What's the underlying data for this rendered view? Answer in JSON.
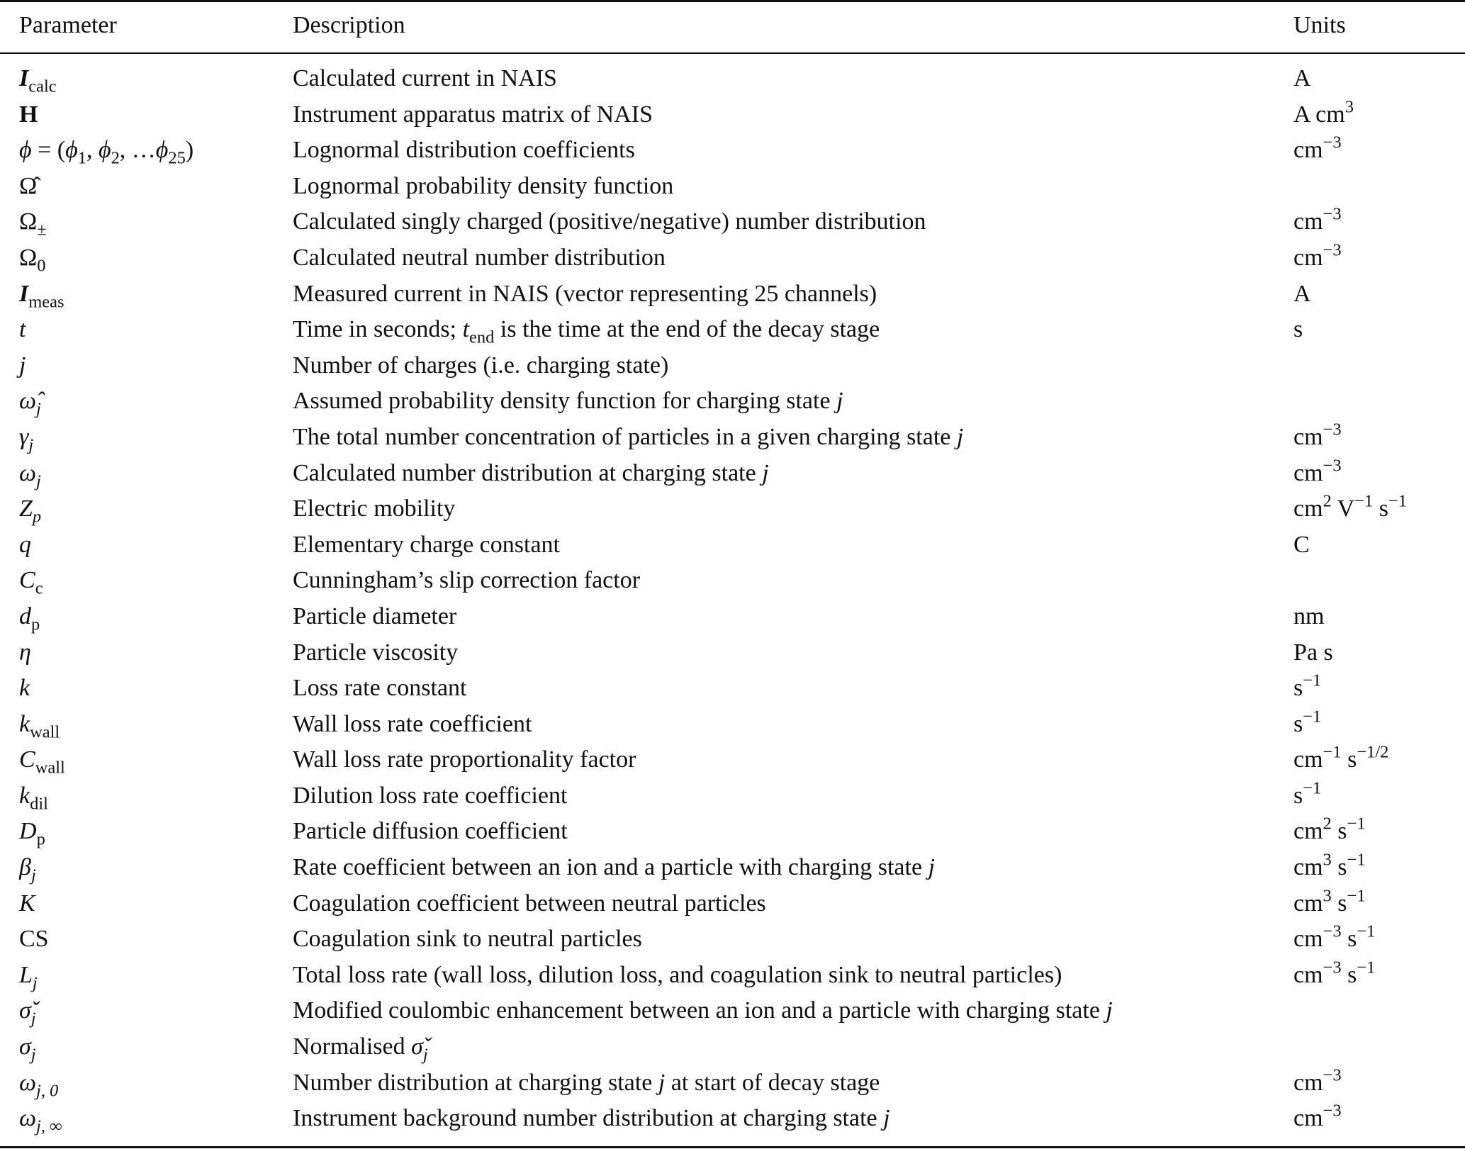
{
  "header": {
    "parameter": "Parameter",
    "description": "Description",
    "units": "Units"
  },
  "rows": [
    {
      "param": [
        {
          "t": "I",
          "i": 1,
          "b": 1,
          "sub": "calc"
        }
      ],
      "desc": [
        {
          "t": "Calculated current in NAIS"
        }
      ],
      "units": [
        {
          "t": "A"
        }
      ]
    },
    {
      "param": [
        {
          "t": "H",
          "b": 1
        }
      ],
      "desc": [
        {
          "t": "Instrument apparatus matrix of NAIS"
        }
      ],
      "units": [
        {
          "t": "A cm",
          "sup": "3"
        }
      ]
    },
    {
      "param": [
        {
          "t": "ϕ",
          "i": 1
        },
        {
          "t": " = ("
        },
        {
          "t": "ϕ",
          "i": 1,
          "sub": "1"
        },
        {
          "t": ", "
        },
        {
          "t": "ϕ",
          "i": 1,
          "sub": "2"
        },
        {
          "t": ", …"
        },
        {
          "t": "ϕ",
          "i": 1,
          "sub": "25"
        },
        {
          "t": ")"
        }
      ],
      "desc": [
        {
          "t": "Lognormal distribution coefficients"
        }
      ],
      "units": [
        {
          "t": "cm",
          "sup": "−3"
        }
      ]
    },
    {
      "param": [
        {
          "t": "Ω̂"
        }
      ],
      "desc": [
        {
          "t": "Lognormal probability density function"
        }
      ],
      "units": []
    },
    {
      "param": [
        {
          "t": "Ω",
          "sub": "±"
        }
      ],
      "desc": [
        {
          "t": "Calculated singly charged (positive/negative) number distribution"
        }
      ],
      "units": [
        {
          "t": "cm",
          "sup": "−3"
        }
      ]
    },
    {
      "param": [
        {
          "t": "Ω",
          "sub": "0"
        }
      ],
      "desc": [
        {
          "t": "Calculated neutral number distribution"
        }
      ],
      "units": [
        {
          "t": "cm",
          "sup": "−3"
        }
      ]
    },
    {
      "param": [
        {
          "t": "I",
          "i": 1,
          "b": 1,
          "sub": "meas"
        }
      ],
      "desc": [
        {
          "t": "Measured current in NAIS (vector representing 25 channels)"
        }
      ],
      "units": [
        {
          "t": "A"
        }
      ]
    },
    {
      "param": [
        {
          "t": "t",
          "i": 1
        }
      ],
      "desc": [
        {
          "t": "Time in seconds; "
        },
        {
          "t": "t",
          "i": 1,
          "sub": "end"
        },
        {
          "t": " is the time at the end of the decay stage"
        }
      ],
      "units": [
        {
          "t": "s"
        }
      ]
    },
    {
      "param": [
        {
          "t": "j",
          "i": 1
        }
      ],
      "desc": [
        {
          "t": "Number of charges (i.e. charging state)"
        }
      ],
      "units": []
    },
    {
      "param": [
        {
          "t": "ω̂",
          "i": 1,
          "sub": "j",
          "si": 1
        }
      ],
      "desc": [
        {
          "t": "Assumed probability density function for charging state "
        },
        {
          "t": "j",
          "i": 1
        }
      ],
      "units": []
    },
    {
      "param": [
        {
          "t": "γ",
          "i": 1,
          "sub": "j",
          "si": 1
        }
      ],
      "desc": [
        {
          "t": "The total number concentration of particles in a given charging state "
        },
        {
          "t": "j",
          "i": 1
        }
      ],
      "units": [
        {
          "t": "cm",
          "sup": "−3"
        }
      ]
    },
    {
      "param": [
        {
          "t": "ω",
          "i": 1,
          "sub": "j",
          "si": 1
        }
      ],
      "desc": [
        {
          "t": "Calculated number distribution at charging state "
        },
        {
          "t": "j",
          "i": 1
        }
      ],
      "units": [
        {
          "t": "cm",
          "sup": "−3"
        }
      ]
    },
    {
      "param": [
        {
          "t": "Z",
          "i": 1,
          "sub": "p",
          "si": 1
        }
      ],
      "desc": [
        {
          "t": "Electric mobility"
        }
      ],
      "units": [
        {
          "t": "cm",
          "sup": "2"
        },
        {
          "t": " V",
          "sup": "−1"
        },
        {
          "t": " s",
          "sup": "−1"
        }
      ]
    },
    {
      "param": [
        {
          "t": "q",
          "i": 1
        }
      ],
      "desc": [
        {
          "t": "Elementary charge constant"
        }
      ],
      "units": [
        {
          "t": "C"
        }
      ]
    },
    {
      "param": [
        {
          "t": "C",
          "i": 1,
          "sub": "c"
        }
      ],
      "desc": [
        {
          "t": "Cunningham’s slip correction factor"
        }
      ],
      "units": []
    },
    {
      "param": [
        {
          "t": "d",
          "i": 1,
          "sub": "p"
        }
      ],
      "desc": [
        {
          "t": "Particle diameter"
        }
      ],
      "units": [
        {
          "t": "nm"
        }
      ]
    },
    {
      "param": [
        {
          "t": "η",
          "i": 1
        }
      ],
      "desc": [
        {
          "t": "Particle viscosity"
        }
      ],
      "units": [
        {
          "t": "Pa s"
        }
      ]
    },
    {
      "param": [
        {
          "t": "k",
          "i": 1
        }
      ],
      "desc": [
        {
          "t": "Loss rate constant"
        }
      ],
      "units": [
        {
          "t": "s",
          "sup": "−1"
        }
      ]
    },
    {
      "param": [
        {
          "t": "k",
          "i": 1,
          "sub": "wall"
        }
      ],
      "desc": [
        {
          "t": "Wall loss rate coefficient"
        }
      ],
      "units": [
        {
          "t": "s",
          "sup": "−1"
        }
      ]
    },
    {
      "param": [
        {
          "t": "C",
          "i": 1,
          "sub": "wall"
        }
      ],
      "desc": [
        {
          "t": "Wall loss rate proportionality factor"
        }
      ],
      "units": [
        {
          "t": "cm",
          "sup": "−1"
        },
        {
          "t": " s",
          "sup": "−1/2"
        }
      ]
    },
    {
      "param": [
        {
          "t": "k",
          "i": 1,
          "sub": "dil"
        }
      ],
      "desc": [
        {
          "t": "Dilution loss rate coefficient"
        }
      ],
      "units": [
        {
          "t": "s",
          "sup": "−1"
        }
      ]
    },
    {
      "param": [
        {
          "t": "D",
          "i": 1,
          "sub": "p"
        }
      ],
      "desc": [
        {
          "t": "Particle diffusion coefficient"
        }
      ],
      "units": [
        {
          "t": "cm",
          "sup": "2"
        },
        {
          "t": " s",
          "sup": "−1"
        }
      ]
    },
    {
      "param": [
        {
          "t": "β",
          "i": 1,
          "sub": "j",
          "si": 1
        }
      ],
      "desc": [
        {
          "t": "Rate coefficient between an ion and a particle with charging state "
        },
        {
          "t": "j",
          "i": 1
        }
      ],
      "units": [
        {
          "t": "cm",
          "sup": "3"
        },
        {
          "t": " s",
          "sup": "−1"
        }
      ]
    },
    {
      "param": [
        {
          "t": "K",
          "i": 1
        }
      ],
      "desc": [
        {
          "t": "Coagulation coefficient between neutral particles"
        }
      ],
      "units": [
        {
          "t": "cm",
          "sup": "3"
        },
        {
          "t": " s",
          "sup": "−1"
        }
      ]
    },
    {
      "param": [
        {
          "t": "CS"
        }
      ],
      "desc": [
        {
          "t": "Coagulation sink to neutral particles"
        }
      ],
      "units": [
        {
          "t": "cm",
          "sup": "−3"
        },
        {
          "t": " s",
          "sup": "−1"
        }
      ]
    },
    {
      "param": [
        {
          "t": "L",
          "i": 1,
          "sub": "j",
          "si": 1
        }
      ],
      "desc": [
        {
          "t": "Total loss rate (wall loss, dilution loss, and coagulation sink to neutral particles)"
        }
      ],
      "units": [
        {
          "t": "cm",
          "sup": "−3"
        },
        {
          "t": " s",
          "sup": "−1"
        }
      ]
    },
    {
      "param": [
        {
          "t": "σ̌",
          "i": 1,
          "sub": "j",
          "si": 1
        }
      ],
      "desc": [
        {
          "t": "Modified coulombic enhancement between an ion and a particle with charging state "
        },
        {
          "t": "j",
          "i": 1
        }
      ],
      "units": []
    },
    {
      "param": [
        {
          "t": "σ",
          "i": 1,
          "sub": "j",
          "si": 1
        }
      ],
      "desc": [
        {
          "t": "Normalised "
        },
        {
          "t": "σ̌",
          "i": 1,
          "sub": "j",
          "si": 1
        }
      ],
      "units": []
    },
    {
      "param": [
        {
          "t": "ω",
          "i": 1,
          "sub": "j, 0",
          "si": 1
        }
      ],
      "desc": [
        {
          "t": "Number distribution at charging state "
        },
        {
          "t": "j",
          "i": 1
        },
        {
          "t": " at start of decay stage"
        }
      ],
      "units": [
        {
          "t": "cm",
          "sup": "−3"
        }
      ]
    },
    {
      "param": [
        {
          "t": "ω",
          "i": 1,
          "sub": "j, ∞",
          "si": 1
        }
      ],
      "desc": [
        {
          "t": "Instrument background number distribution at charging state "
        },
        {
          "t": "j",
          "i": 1
        }
      ],
      "units": [
        {
          "t": "cm",
          "sup": "−3"
        }
      ]
    }
  ]
}
